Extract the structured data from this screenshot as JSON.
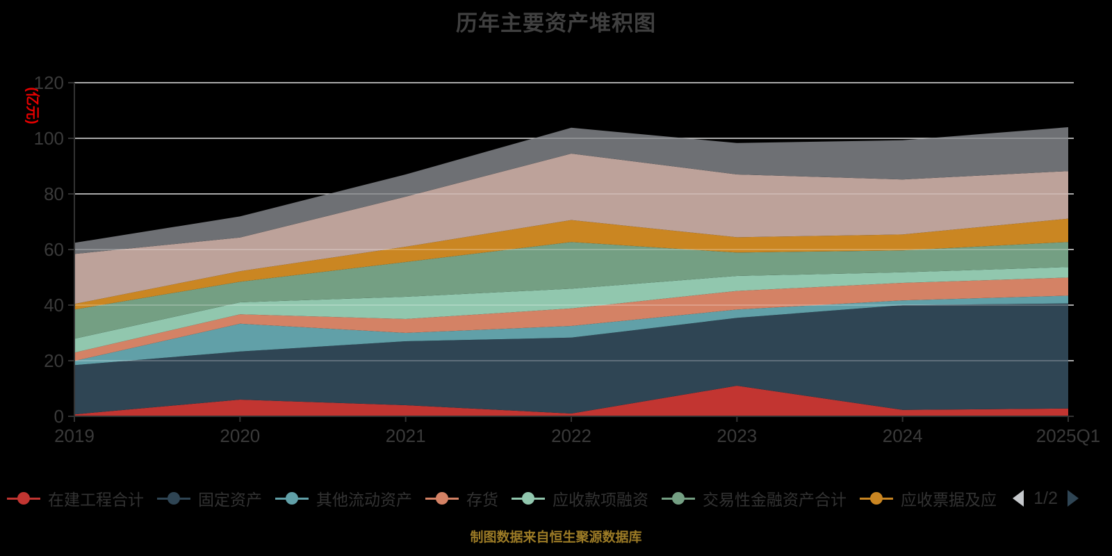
{
  "title": "历年主要资产堆积图",
  "y_axis": {
    "name": "(亿元)",
    "tick_labels": [
      "0",
      "20",
      "40",
      "60",
      "80",
      "100",
      "120"
    ]
  },
  "x_axis": {
    "labels": [
      "2019",
      "2020",
      "2021",
      "2022",
      "2023",
      "2024",
      "2025Q1"
    ]
  },
  "legend": {
    "page_label": "1/2",
    "items": [
      {
        "label": "在建工程合计",
        "color": "#c23531"
      },
      {
        "label": "固定资产",
        "color": "#2f4554"
      },
      {
        "label": "其他流动资产",
        "color": "#61a0a8"
      },
      {
        "label": "存货",
        "color": "#d48265"
      },
      {
        "label": "应收款项融资",
        "color": "#91c7ae"
      },
      {
        "label": "交易性金融资产合计",
        "color": "#749f83"
      },
      {
        "label": "应收票据及应",
        "color": "#ca8622"
      }
    ]
  },
  "source_note": "制图数据来自恒生聚源数据库",
  "colors": {
    "title_text": "#404040",
    "axis_line": "#333333",
    "axis_label": "#3a3a3a",
    "grid_line": "#c9c9c9",
    "y_name_red": "#e60000",
    "source_gold": "#9c7b26",
    "pager_inactive": "#c6c9cc",
    "pager_active": "#2f4554"
  },
  "chart_data": {
    "type": "area",
    "stacked": true,
    "title": "历年主要资产堆积图",
    "xlabel": "",
    "ylabel": "(亿元)",
    "ylim": [
      0,
      120
    ],
    "ytick_interval": 20,
    "grid": true,
    "legend_position": "bottom",
    "legend_page": "1/2",
    "categories": [
      "2019",
      "2020",
      "2021",
      "2022",
      "2023",
      "2024",
      "2025Q1"
    ],
    "series": [
      {
        "name": "在建工程合计",
        "color": "#c23531",
        "values": [
          0.7,
          6,
          4,
          1,
          11,
          2.3,
          2.8
        ]
      },
      {
        "name": "固定资产",
        "color": "#2f4554",
        "values": [
          17.7,
          17.3,
          23,
          27.3,
          24.4,
          37.7,
          37.8
        ]
      },
      {
        "name": "其他流动资产",
        "color": "#61a0a8",
        "values": [
          1.5,
          10,
          3,
          4.2,
          3,
          1.7,
          2.8
        ]
      },
      {
        "name": "存货",
        "color": "#d48265",
        "values": [
          3,
          3.4,
          5,
          6.3,
          6.7,
          6.3,
          6.5
        ]
      },
      {
        "name": "应收款项融资",
        "color": "#91c7ae",
        "values": [
          5,
          4.3,
          8,
          7.1,
          5.4,
          3.8,
          3.8
        ]
      },
      {
        "name": "交易性金融资产合计",
        "color": "#749f83",
        "values": [
          10.5,
          7.4,
          12.5,
          16.8,
          8.4,
          7.9,
          9
        ]
      },
      {
        "name": "应收票据及应",
        "color": "#ca8622",
        "values": [
          2,
          3.8,
          5.5,
          7.9,
          5.5,
          5.7,
          8.4
        ]
      },
      {
        "name": "",
        "color": "#bda29a",
        "values": [
          18,
          12.1,
          18,
          23.9,
          22.6,
          19.8,
          17.1
        ]
      },
      {
        "name": "",
        "color": "#6e7074",
        "values": [
          4,
          7.6,
          8,
          9.3,
          11.3,
          14.1,
          15.8
        ]
      }
    ]
  }
}
